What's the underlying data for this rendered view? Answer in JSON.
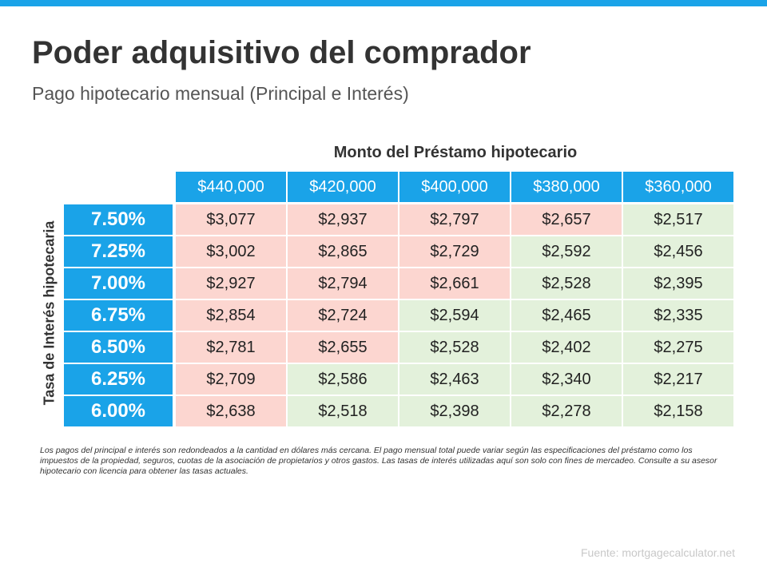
{
  "header": {
    "title": "Poder adquisitivo del comprador",
    "subtitle": "Pago hipotecario mensual (Principal e Interés)"
  },
  "table": {
    "column_header": "Monto del Préstamo hipotecario",
    "row_header": "Tasa de Interés hipotecaria",
    "header_color": "#1aa3e8",
    "columns": [
      "$440,000",
      "$420,000",
      "$400,000",
      "$380,000",
      "$360,000"
    ],
    "rows": [
      {
        "rate": "7.50%",
        "values": [
          "$3,077",
          "$2,937",
          "$2,797",
          "$2,657",
          "$2,517"
        ],
        "cell_colors": [
          "#fcd6d0",
          "#fcd6d0",
          "#fcd6d0",
          "#fcd6d0",
          "#e3f1db"
        ]
      },
      {
        "rate": "7.25%",
        "values": [
          "$3,002",
          "$2,865",
          "$2,729",
          "$2,592",
          "$2,456"
        ],
        "cell_colors": [
          "#fcd6d0",
          "#fcd6d0",
          "#fcd6d0",
          "#e3f1db",
          "#e3f1db"
        ]
      },
      {
        "rate": "7.00%",
        "values": [
          "$2,927",
          "$2,794",
          "$2,661",
          "$2,528",
          "$2,395"
        ],
        "cell_colors": [
          "#fcd6d0",
          "#fcd6d0",
          "#fcd6d0",
          "#e3f1db",
          "#e3f1db"
        ]
      },
      {
        "rate": "6.75%",
        "values": [
          "$2,854",
          "$2,724",
          "$2,594",
          "$2,465",
          "$2,335"
        ],
        "cell_colors": [
          "#fcd6d0",
          "#fcd6d0",
          "#e3f1db",
          "#e3f1db",
          "#e3f1db"
        ]
      },
      {
        "rate": "6.50%",
        "values": [
          "$2,781",
          "$2,655",
          "$2,528",
          "$2,402",
          "$2,275"
        ],
        "cell_colors": [
          "#fcd6d0",
          "#fcd6d0",
          "#e3f1db",
          "#e3f1db",
          "#e3f1db"
        ]
      },
      {
        "rate": "6.25%",
        "values": [
          "$2,709",
          "$2,586",
          "$2,463",
          "$2,340",
          "$2,217"
        ],
        "cell_colors": [
          "#fcd6d0",
          "#e3f1db",
          "#e3f1db",
          "#e3f1db",
          "#e3f1db"
        ]
      },
      {
        "rate": "6.00%",
        "values": [
          "$2,638",
          "$2,518",
          "$2,398",
          "$2,278",
          "$2,158"
        ],
        "cell_colors": [
          "#fcd6d0",
          "#e3f1db",
          "#e3f1db",
          "#e3f1db",
          "#e3f1db"
        ]
      }
    ]
  },
  "footnote": "Los pagos del principal e interés son redondeados a la cantidad en dólares más cercana. El pago mensual total puede variar según las especificaciones del préstamo como los impuestos de la propiedad, seguros, cuotas de la asociación de propietarios y otros gastos. Las tasas de interés utilizadas aquí son solo con fines de mercadeo. Consulte a su asesor hipotecario con licencia para obtener las tasas actuales.",
  "source": "Fuente:  mortgagecalculator.net"
}
